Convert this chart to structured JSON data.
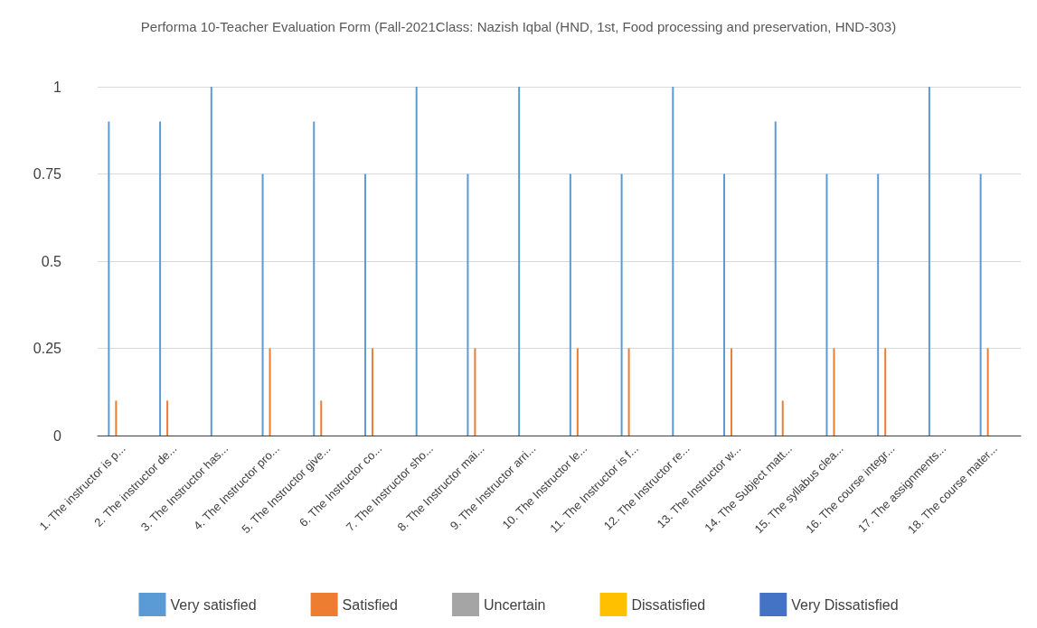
{
  "chart_data": {
    "type": "bar",
    "title": "Performa 10-Teacher Evaluation Form (Fall-2021Class: Nazish Iqbal (HND, 1st, Food processing and preservation, HND-303)",
    "categories": [
      "1. The instructor is p...",
      "2. The instructor de...",
      "3. The Instructor has...",
      "4. The Instructor pro...",
      "5. The Instructor give...",
      "6. The Instructor co...",
      "7. The Instructor sho...",
      "8. The Instructor mai...",
      "9. The Instructor arri...",
      "10. The Instructor le...",
      "11. The Instructor is f...",
      "12. The Instructor re...",
      "13. The Instructor w...",
      "14. The Subject matt...",
      "15. The syllabus clea...",
      "16. The course integr...",
      "17. The assignments...",
      "18. The course mater..."
    ],
    "series": [
      {
        "name": "Very satisfied",
        "color": "#5b9bd5",
        "values": [
          0.9,
          0.9,
          1,
          0.75,
          0.9,
          0.75,
          1,
          0.75,
          1,
          0.75,
          0.75,
          1,
          0.75,
          0.9,
          0.75,
          0.75,
          1,
          0.75
        ]
      },
      {
        "name": "Satisfied",
        "color": "#ed7d31",
        "values": [
          0.1,
          0.1,
          0,
          0.25,
          0.1,
          0.25,
          0,
          0.25,
          0,
          0.25,
          0.25,
          0,
          0.25,
          0.1,
          0.25,
          0.25,
          0,
          0.25
        ]
      },
      {
        "name": "Uncertain",
        "color": "#a5a5a5",
        "values": [
          0,
          0,
          0,
          0,
          0,
          0,
          0,
          0,
          0,
          0,
          0,
          0,
          0,
          0,
          0,
          0,
          0,
          0
        ]
      },
      {
        "name": "Dissatisfied",
        "color": "#ffc000",
        "values": [
          0,
          0,
          0,
          0,
          0,
          0,
          0,
          0,
          0,
          0,
          0,
          0,
          0,
          0,
          0,
          0,
          0,
          0
        ]
      },
      {
        "name": "Very Dissatisfied",
        "color": "#4472c4",
        "values": [
          0,
          0,
          0,
          0,
          0,
          0,
          0,
          0,
          0,
          0,
          0,
          0,
          0,
          0,
          0,
          0,
          0,
          0
        ]
      }
    ],
    "ylim": [
      0,
      1
    ],
    "yticks": [
      0,
      0.25,
      0.5,
      0.75,
      1
    ],
    "grid": "y",
    "legend": "bottom"
  }
}
